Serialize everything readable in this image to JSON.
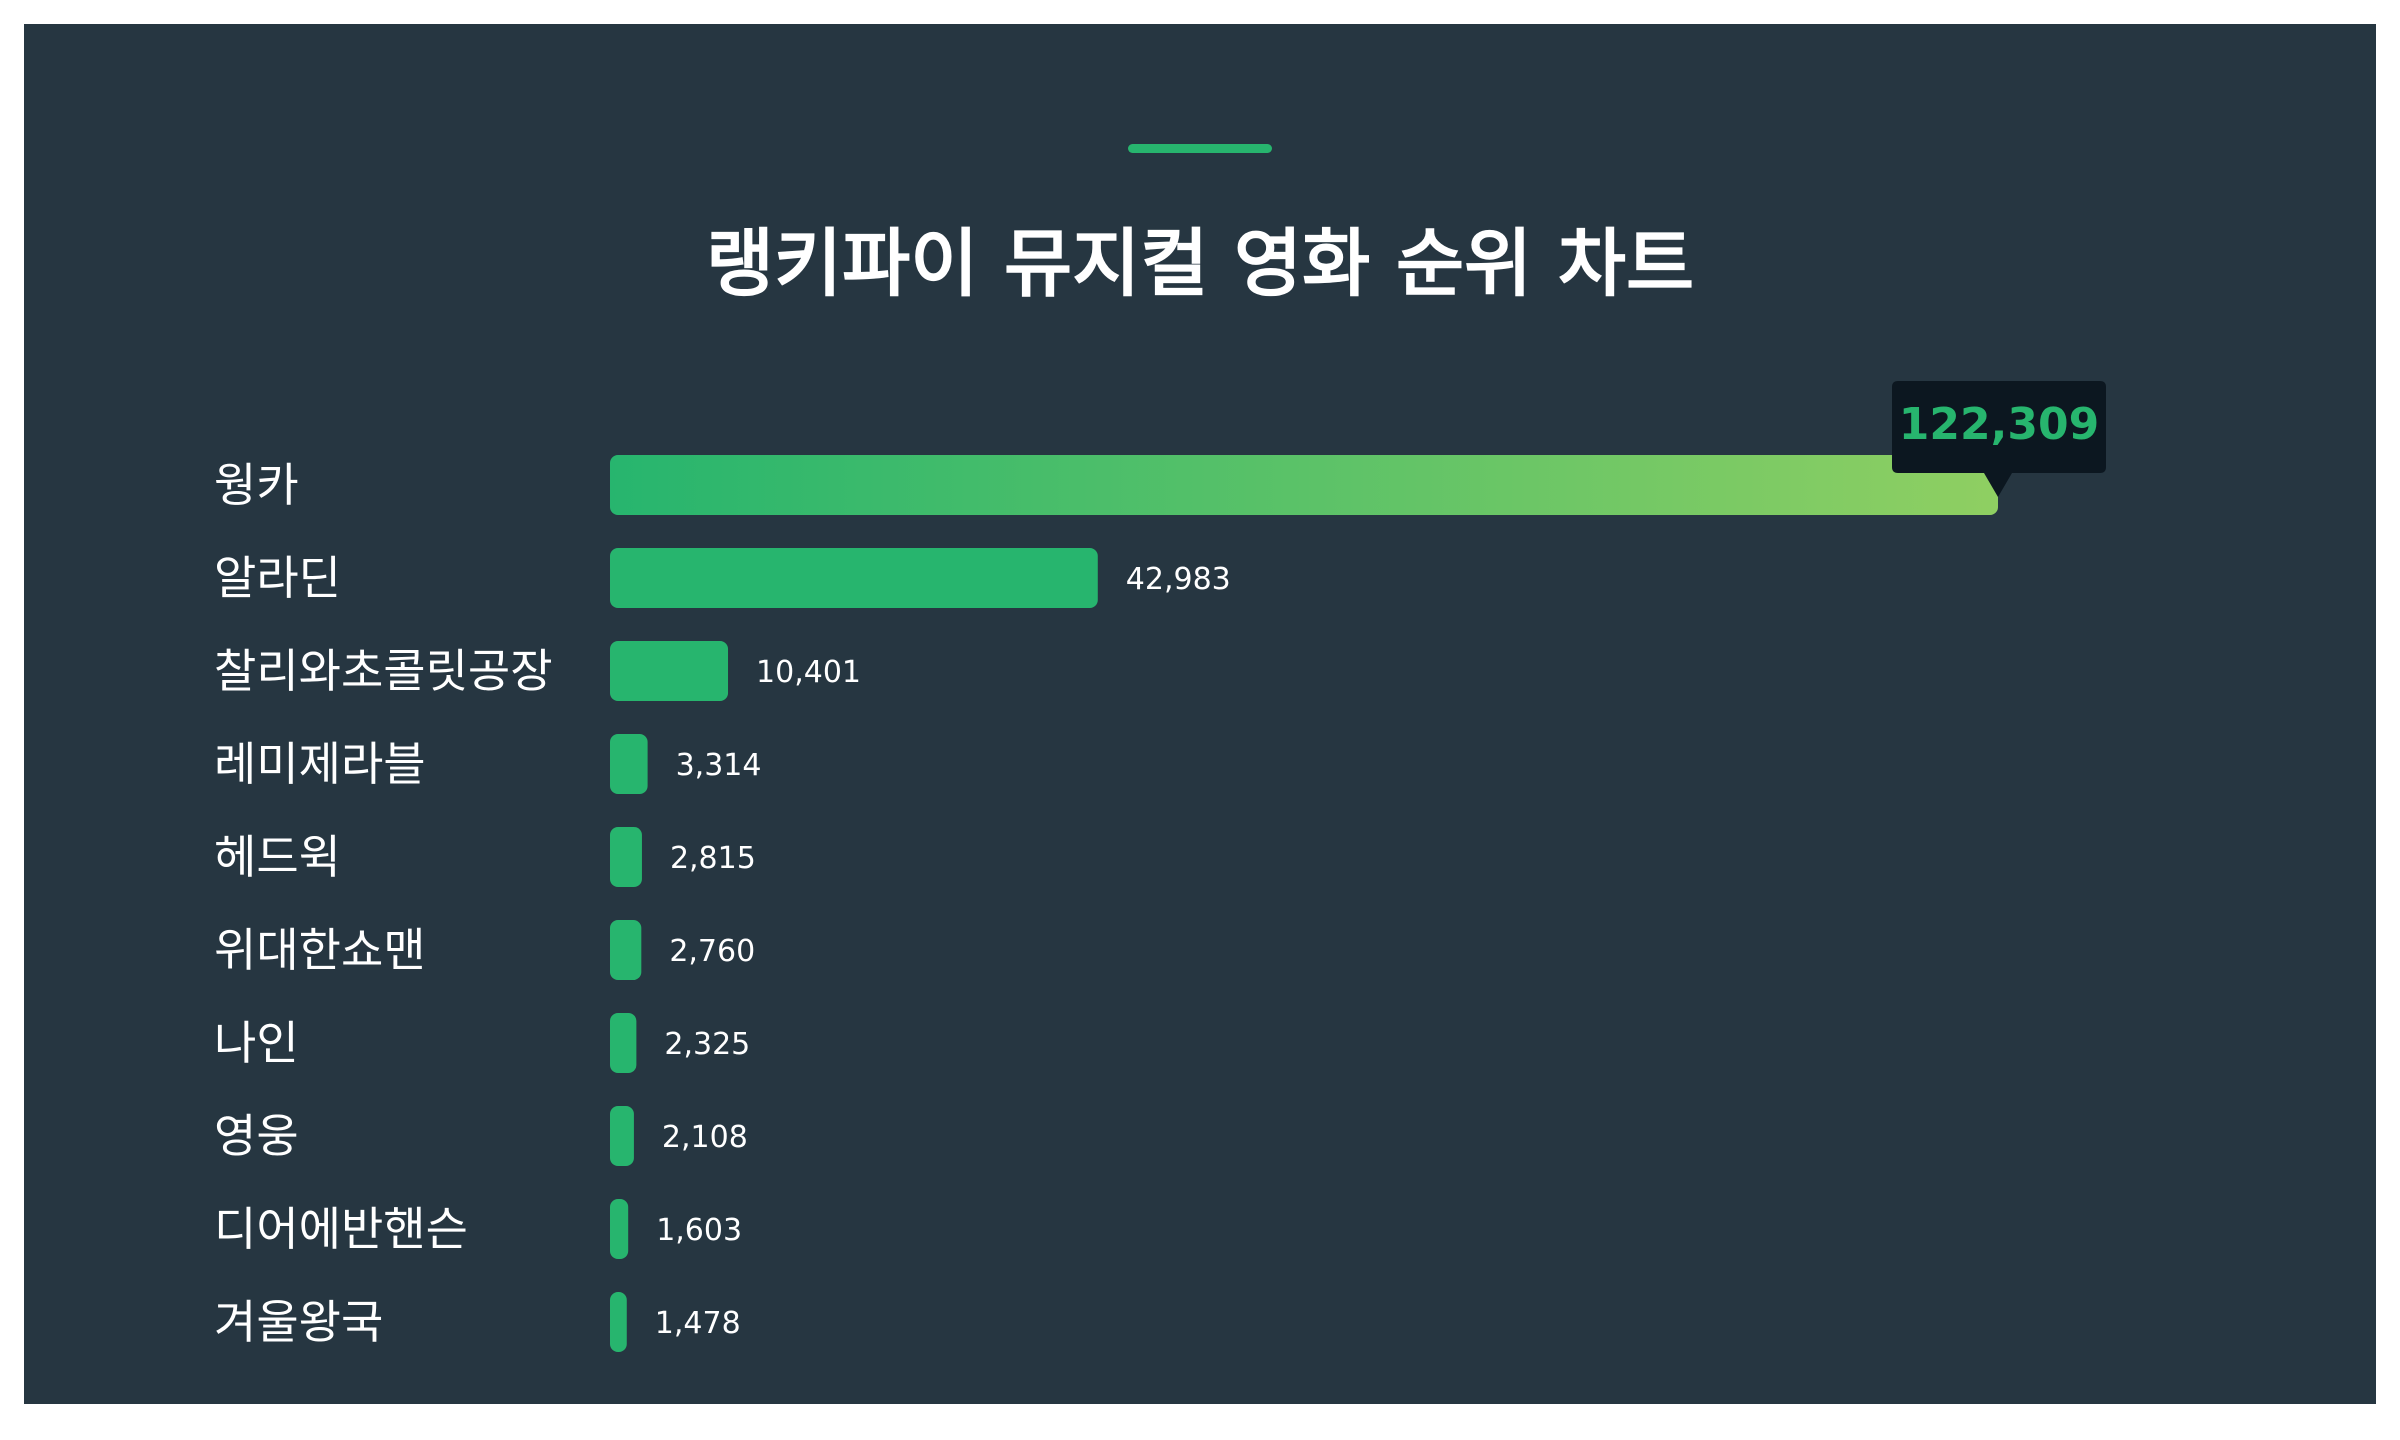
{
  "title": "랭키파이 뮤지컬 영화 순위 차트",
  "colors": {
    "background": "#263641",
    "accent": "#27b56e",
    "bar": "#27b56e",
    "bar_gradient_end": "#8fcf62",
    "label_text": "#ffffff",
    "tooltip_bg": "#0c1720",
    "tooltip_text": "#27b56e"
  },
  "chart_data": {
    "type": "bar",
    "orientation": "horizontal",
    "title": "랭키파이 뮤지컬 영화 순위 차트",
    "categories": [
      "웡카",
      "알라딘",
      "찰리와초콜릿공장",
      "레미제라블",
      "헤드윅",
      "위대한쇼맨",
      "나인",
      "영웅",
      "디어에반핸슨",
      "겨울왕국"
    ],
    "values": [
      122309,
      42983,
      10401,
      3314,
      2815,
      2760,
      2325,
      2108,
      1603,
      1478
    ],
    "value_labels": [
      "122,309",
      "42,983",
      "10,401",
      "3,314",
      "2,815",
      "2,760",
      "2,325",
      "2,108",
      "1,603",
      "1,478"
    ],
    "highlight": {
      "index": 0,
      "label": "122,309"
    },
    "xlim": [
      0,
      122309
    ],
    "grid": false,
    "legend": "none"
  }
}
